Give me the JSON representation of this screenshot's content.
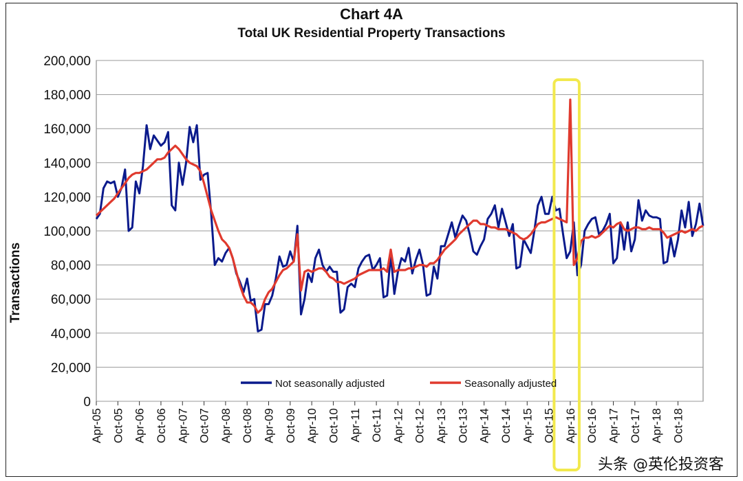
{
  "watermark": "头条 @英伦投资客",
  "chart_data": {
    "type": "line",
    "title": "Chart 4A",
    "subtitle": "Total UK Residential Property Transactions",
    "xlabel": "",
    "ylabel": "Transactions",
    "ylim": [
      0,
      200000
    ],
    "yticks": [
      "0",
      "20,000",
      "40,000",
      "60,000",
      "80,000",
      "100,000",
      "120,000",
      "140,000",
      "160,000",
      "180,000",
      "200,000"
    ],
    "x_tick_labels": [
      "Apr-05",
      "Oct-05",
      "Apr-06",
      "Oct-06",
      "Apr-07",
      "Oct-07",
      "Apr-08",
      "Oct-08",
      "Apr-09",
      "Oct-09",
      "Apr-10",
      "Oct-10",
      "Apr-11",
      "Oct-11",
      "Apr-12",
      "Oct-12",
      "Apr-13",
      "Oct-13",
      "Apr-14",
      "Oct-14",
      "Apr-15",
      "Oct-15",
      "Apr-16",
      "Oct-16",
      "Apr-17",
      "Oct-17",
      "Apr-18",
      "Oct-18"
    ],
    "x_start": "Apr-05",
    "x_step": "1 month",
    "grid": true,
    "legend_position": "bottom-center",
    "series": [
      {
        "name": "Not seasonally adjusted",
        "color": "#0a1a8c",
        "values": [
          107000,
          110000,
          125000,
          129000,
          128000,
          129000,
          120000,
          125000,
          136000,
          100000,
          102000,
          129000,
          122000,
          138000,
          162000,
          148000,
          156000,
          153000,
          150000,
          152000,
          158000,
          115000,
          112000,
          140000,
          127000,
          140000,
          161000,
          152000,
          162000,
          130000,
          133000,
          134000,
          110000,
          80000,
          84000,
          82000,
          87000,
          90000,
          84000,
          75000,
          70000,
          64000,
          72000,
          59000,
          60000,
          41000,
          42000,
          57000,
          57000,
          62000,
          72000,
          85000,
          79000,
          80000,
          88000,
          82000,
          103000,
          51000,
          60000,
          75000,
          70000,
          84000,
          89000,
          80000,
          76000,
          79000,
          76000,
          76000,
          52000,
          54000,
          67000,
          69000,
          67000,
          78000,
          82000,
          85000,
          86000,
          77000,
          80000,
          84000,
          61000,
          62000,
          86000,
          63000,
          76000,
          84000,
          82000,
          90000,
          75000,
          83000,
          89000,
          80000,
          62000,
          63000,
          79000,
          72000,
          91000,
          91000,
          98000,
          105000,
          96000,
          103000,
          109000,
          106000,
          98000,
          88000,
          86000,
          91000,
          95000,
          107000,
          110000,
          115000,
          102000,
          113000,
          105000,
          97000,
          104000,
          78000,
          79000,
          95000,
          91000,
          87000,
          100000,
          115000,
          120000,
          110000,
          110000,
          120000,
          112000,
          113000,
          98000,
          84000,
          88000,
          105000,
          74000,
          80000,
          100000,
          104000,
          107000,
          108000,
          98000,
          100000,
          104000,
          110000,
          81000,
          84000,
          105000,
          89000,
          105000,
          88000,
          95000,
          118000,
          106000,
          112000,
          109000,
          108000,
          108000,
          107000,
          81000,
          82000,
          96000,
          85000,
          95000,
          112000,
          102000,
          117000,
          97000,
          104000,
          116000,
          103000
        ]
      },
      {
        "name": "Seasonally adjusted",
        "color": "#e03a2e",
        "values": [
          109000,
          111000,
          113000,
          115000,
          117000,
          119000,
          122000,
          125000,
          128000,
          131000,
          133000,
          134000,
          134000,
          135000,
          136000,
          138000,
          140000,
          142000,
          142000,
          143000,
          146000,
          148000,
          150000,
          148000,
          145000,
          142000,
          140000,
          139000,
          138000,
          135000,
          128000,
          120000,
          112000,
          106000,
          100000,
          95000,
          93000,
          90000,
          84000,
          76000,
          68000,
          62000,
          58000,
          58000,
          56000,
          52000,
          54000,
          60000,
          64000,
          66000,
          70000,
          74000,
          77000,
          78000,
          80000,
          82000,
          98000,
          65000,
          76000,
          77000,
          76000,
          77000,
          78000,
          78000,
          76000,
          73000,
          72000,
          70000,
          70000,
          69000,
          70000,
          71000,
          72000,
          74000,
          75000,
          76000,
          77000,
          77000,
          77000,
          77000,
          78000,
          76000,
          89000,
          76000,
          77000,
          77000,
          77000,
          78000,
          78000,
          79000,
          80000,
          80000,
          79000,
          81000,
          81000,
          83000,
          86000,
          89000,
          91000,
          93000,
          95000,
          98000,
          100000,
          102000,
          104000,
          106000,
          106000,
          104000,
          104000,
          103000,
          102000,
          102000,
          101000,
          101000,
          101000,
          100000,
          99000,
          98000,
          96000,
          95000,
          96000,
          98000,
          101000,
          104000,
          105000,
          105000,
          106000,
          107000,
          108000,
          107000,
          106000,
          105000,
          177000,
          80000,
          84000,
          94000,
          96000,
          96000,
          97000,
          96000,
          97000,
          99000,
          101000,
          103000,
          102000,
          104000,
          105000,
          101000,
          100000,
          101000,
          102000,
          102000,
          101000,
          101000,
          102000,
          101000,
          101000,
          101000,
          99000,
          96000,
          97000,
          98000,
          99000,
          100000,
          99000,
          100000,
          101000,
          100000,
          102000,
          103000
        ]
      }
    ],
    "annotations": [
      {
        "type": "highlight-box",
        "color": "#f2e94e",
        "from": "Dec-15",
        "to": "Jun-16",
        "note": "highlighted spike"
      }
    ]
  }
}
